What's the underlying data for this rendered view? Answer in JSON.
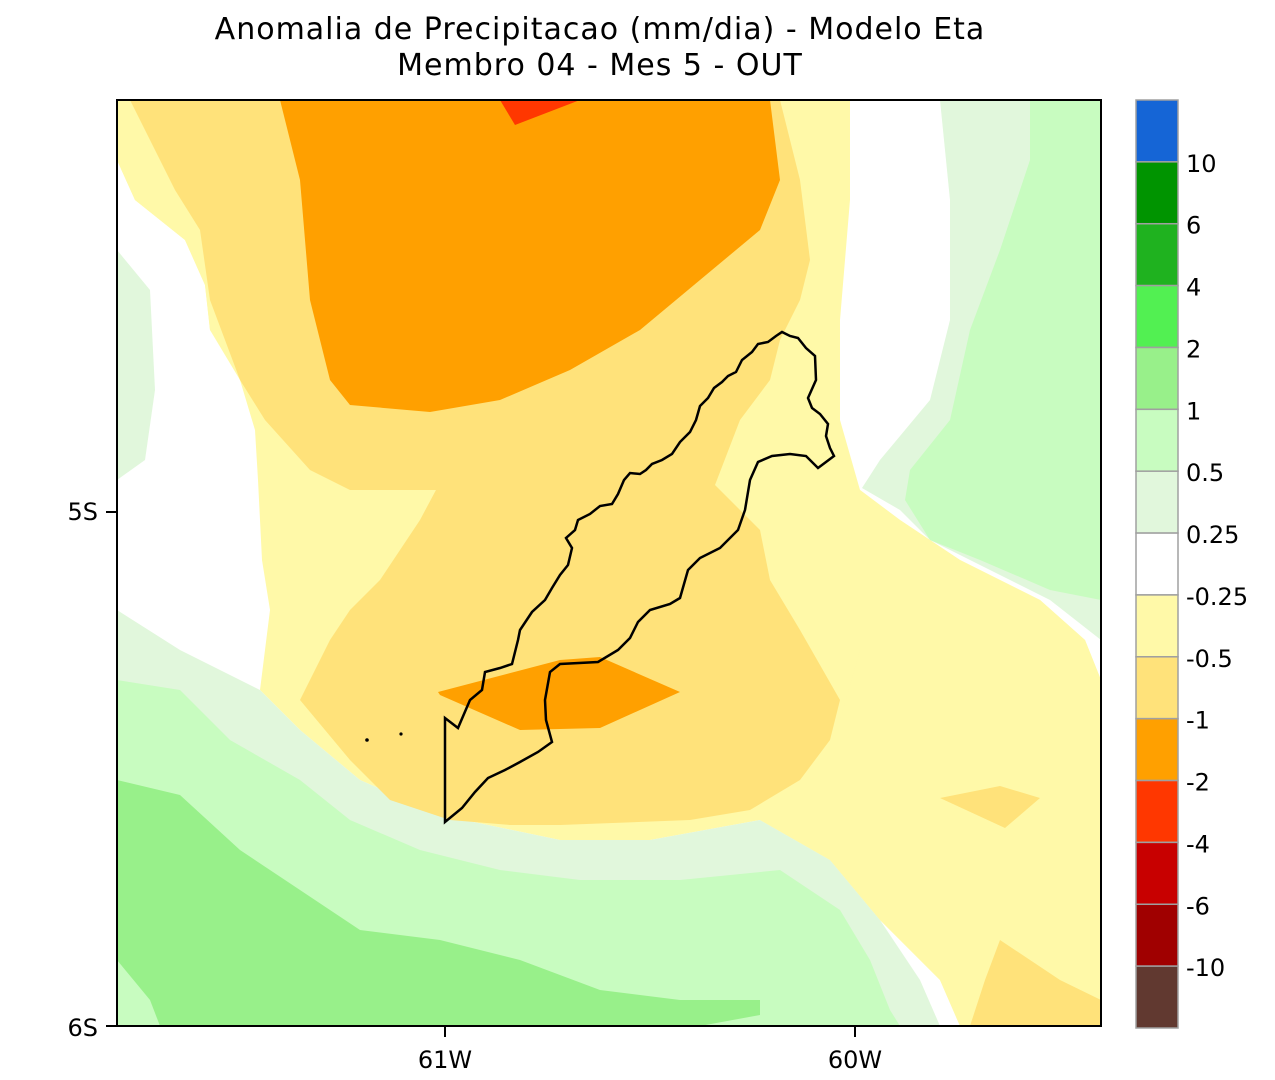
{
  "title": {
    "line1": "Anomalia de Precipitacao (mm/dia) - Modelo Eta",
    "line2": "Membro 04 - Mes 5 - OUT"
  },
  "axes": {
    "y_ticks": [
      {
        "label": "5S"
      },
      {
        "label": "6S"
      }
    ],
    "x_ticks": [
      {
        "label": "61W"
      },
      {
        "label": "60W"
      }
    ]
  },
  "colorbar": {
    "levels": [
      {
        "label": "",
        "color": "#1565d6"
      },
      {
        "label": "10",
        "color": "#009400"
      },
      {
        "label": "6",
        "color": "#1fb21f"
      },
      {
        "label": "4",
        "color": "#52f052"
      },
      {
        "label": "2",
        "color": "#98f08a"
      },
      {
        "label": "1",
        "color": "#c8fcc0"
      },
      {
        "label": "0.5",
        "color": "#e1f7dc"
      },
      {
        "label": "0.25",
        "color": "#ffffff"
      },
      {
        "label": "-0.25",
        "color": "#fff9a8"
      },
      {
        "label": "-0.5",
        "color": "#ffe27a"
      },
      {
        "label": "-1",
        "color": "#ffa000"
      },
      {
        "label": "-2",
        "color": "#ff3700"
      },
      {
        "label": "-4",
        "color": "#c80000"
      },
      {
        "label": "-6",
        "color": "#a00000"
      },
      {
        "label": "-10",
        "color": "#613930"
      }
    ]
  },
  "colors": {
    "white": "#ffffff",
    "neg025": "#fff9a8",
    "neg05": "#ffe27a",
    "neg1": "#ffa000",
    "neg2": "#ff3700",
    "pos025": "#e1f7dc",
    "pos05": "#c8fcc0",
    "pos1": "#98f08a"
  }
}
